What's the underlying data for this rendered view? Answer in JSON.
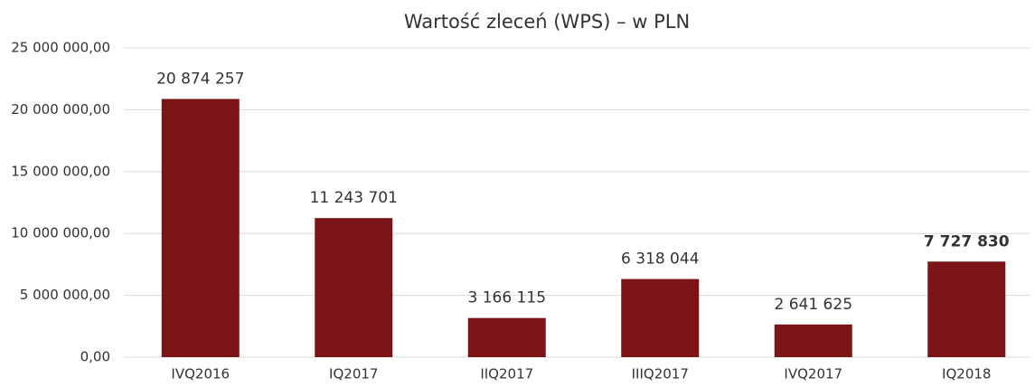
{
  "chart_data": {
    "type": "bar",
    "title": "Wartość zleceń (WPS) – w PLN",
    "categories": [
      "IVQ2016",
      "IQ2017",
      "IIQ2017",
      "IIIQ2017",
      "IVQ2017",
      "IQ2018"
    ],
    "values": [
      20874257,
      11243701,
      3166115,
      6318044,
      2641625,
      7727830
    ],
    "value_labels": [
      "20 874 257",
      "11 243 701",
      "3 166 115",
      "6 318 044",
      "2 641 625",
      "7 727 830"
    ],
    "color": "#7b1416",
    "ylim": [
      0,
      25000000
    ],
    "yticks": [
      {
        "value": 0,
        "label": "0,00"
      },
      {
        "value": 5000000,
        "label": "5 000 000,00"
      },
      {
        "value": 10000000,
        "label": "10 000 000,00"
      },
      {
        "value": 15000000,
        "label": "15 000 000,00"
      },
      {
        "value": 20000000,
        "label": "20 000 000,00"
      },
      {
        "value": 25000000,
        "label": "25 000 000,00"
      }
    ],
    "grid": true
  }
}
